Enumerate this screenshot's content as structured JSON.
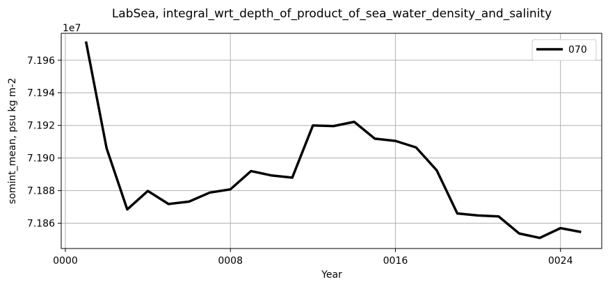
{
  "chart_data": {
    "type": "line",
    "title": "LabSea, integral_wrt_depth_of_product_of_sea_water_density_and_salinity",
    "xlabel": "Year",
    "ylabel": "somint_mean, psu kg m-2",
    "y_offset_label": "1e7",
    "xlim": [
      -0.2,
      26.0
    ],
    "ylim": [
      7.18445,
      7.19765
    ],
    "x_ticks": [
      0,
      8,
      16,
      24
    ],
    "x_tick_labels": [
      "0000",
      "0008",
      "0016",
      "0024"
    ],
    "y_ticks": [
      7.186,
      7.188,
      7.19,
      7.192,
      7.194,
      7.196
    ],
    "y_tick_labels": [
      "7.186",
      "7.188",
      "7.190",
      "7.192",
      "7.194",
      "7.196"
    ],
    "grid": true,
    "legend_position": "top-right",
    "series": [
      {
        "name": "070",
        "color": "#000000",
        "x": [
          1,
          2,
          3,
          4,
          5,
          6,
          7,
          8,
          9,
          10,
          11,
          12,
          13,
          14,
          15,
          16,
          17,
          18,
          19,
          20,
          21,
          22,
          23,
          24,
          25
        ],
        "y": [
          7.19715,
          7.1906,
          7.18685,
          7.18798,
          7.18718,
          7.18733,
          7.18788,
          7.18808,
          7.1892,
          7.18893,
          7.1888,
          7.192,
          7.19196,
          7.19222,
          7.19119,
          7.19105,
          7.19065,
          7.18925,
          7.1866,
          7.18648,
          7.18642,
          7.18537,
          7.1851,
          7.1857,
          7.18546
        ]
      }
    ]
  }
}
